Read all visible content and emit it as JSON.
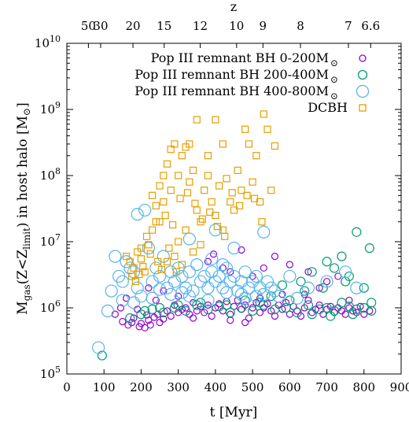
{
  "chart_data": {
    "type": "scatter",
    "top_axis_label": "z",
    "top_ticks": [
      50,
      30,
      20,
      15,
      12,
      10,
      9,
      8,
      7,
      6.6
    ],
    "top_tick_times": [
      58,
      91,
      178,
      262,
      359,
      457,
      528,
      629,
      758,
      818
    ],
    "xlabel": "t [Myr]",
    "ylabel_parts": {
      "prefix": "M",
      "sub1": "gas",
      "middle": "(Z<Z",
      "sub2": "limit",
      "suffix": ") in host halo [M",
      "end": "]"
    },
    "xlim": [
      0,
      900
    ],
    "xticks": [
      0,
      100,
      200,
      300,
      400,
      500,
      600,
      700,
      800,
      900
    ],
    "ylim_log10": [
      5,
      10
    ],
    "yticks_log10": [
      5,
      6,
      7,
      8,
      9,
      10
    ],
    "log_y": true,
    "legend_position": "top-right",
    "series": [
      {
        "name": "Pop III remnant BH 0-200M",
        "color": "#9400d3",
        "marker": "circle-small",
        "points": [
          [
            150,
            0.62
          ],
          [
            165,
            0.55
          ],
          [
            175,
            0.6
          ],
          [
            180,
            0.7
          ],
          [
            195,
            0.52
          ],
          [
            200,
            0.58
          ],
          [
            210,
            0.5
          ],
          [
            215,
            0.78
          ],
          [
            220,
            0.65
          ],
          [
            225,
            0.55
          ],
          [
            235,
            0.72
          ],
          [
            245,
            0.8
          ],
          [
            250,
            0.6
          ],
          [
            260,
            0.68
          ],
          [
            270,
            0.9
          ],
          [
            280,
            0.75
          ],
          [
            290,
            1.1
          ],
          [
            300,
            0.85
          ],
          [
            310,
            0.95
          ],
          [
            320,
            1.0
          ],
          [
            330,
            0.8
          ],
          [
            340,
            1.2
          ],
          [
            350,
            0.9
          ],
          [
            360,
            1.05
          ],
          [
            370,
            0.85
          ],
          [
            380,
            1.1
          ],
          [
            390,
            0.75
          ],
          [
            400,
            1.0
          ],
          [
            410,
            1.15
          ],
          [
            420,
            0.9
          ],
          [
            430,
            1.25
          ],
          [
            440,
            0.8
          ],
          [
            450,
            1.05
          ],
          [
            460,
            1.3
          ],
          [
            470,
            0.95
          ],
          [
            480,
            1.1
          ],
          [
            490,
            0.7
          ],
          [
            500,
            1.0
          ],
          [
            510,
            1.2
          ],
          [
            520,
            0.85
          ],
          [
            530,
            1.0
          ],
          [
            540,
            1.15
          ],
          [
            550,
            0.9
          ],
          [
            560,
            0.75
          ],
          [
            570,
            1.1
          ],
          [
            580,
            0.95
          ],
          [
            590,
            1.2
          ],
          [
            600,
            0.8
          ],
          [
            610,
            1.05
          ],
          [
            620,
            0.9
          ],
          [
            630,
            0.75
          ],
          [
            640,
            1.0
          ],
          [
            650,
            1.3
          ],
          [
            660,
            0.85
          ],
          [
            670,
            0.95
          ],
          [
            680,
            1.1
          ],
          [
            690,
            0.8
          ],
          [
            700,
            0.95
          ],
          [
            710,
            1.05
          ],
          [
            720,
            0.85
          ],
          [
            730,
            1.0
          ],
          [
            740,
            0.9
          ],
          [
            750,
            0.8
          ],
          [
            760,
            1.0
          ],
          [
            770,
            0.9
          ],
          [
            780,
            0.85
          ],
          [
            800,
            0.8
          ],
          [
            815,
            0.9
          ],
          [
            380,
            5.0
          ],
          [
            395,
            6.5
          ],
          [
            420,
            4.0
          ],
          [
            440,
            3.5
          ],
          [
            470,
            7.5
          ],
          [
            500,
            3.0
          ],
          [
            530,
            4.0
          ],
          [
            560,
            6.0
          ],
          [
            600,
            4.5
          ],
          [
            650,
            3.5
          ],
          [
            700,
            2.5
          ],
          [
            730,
            3.0
          ],
          [
            220,
            2.0
          ],
          [
            260,
            1.8
          ],
          [
            160,
            1.4
          ],
          [
            190,
            0.95
          ],
          [
            240,
            1.3
          ],
          [
            300,
            1.5
          ],
          [
            340,
            0.7
          ],
          [
            440,
            0.65
          ],
          [
            480,
            0.6
          ],
          [
            520,
            1.4
          ],
          [
            580,
            1.6
          ],
          [
            640,
            1.6
          ],
          [
            680,
            2.0
          ],
          [
            760,
            1.3
          ],
          [
            790,
            1.05
          ],
          [
            130,
            0.8
          ],
          [
            145,
            1.0
          ]
        ]
      },
      {
        "name": "Pop III remnant BH 200-400M",
        "color": "#009e73",
        "marker": "circle-medium",
        "points": [
          [
            95,
            0.19
          ],
          [
            170,
            0.7
          ],
          [
            200,
            0.8
          ],
          [
            230,
            0.95
          ],
          [
            260,
            0.85
          ],
          [
            290,
            1.0
          ],
          [
            320,
            0.9
          ],
          [
            350,
            1.1
          ],
          [
            380,
            0.95
          ],
          [
            410,
            1.05
          ],
          [
            440,
            0.85
          ],
          [
            470,
            1.0
          ],
          [
            500,
            0.9
          ],
          [
            530,
            1.1
          ],
          [
            560,
            0.95
          ],
          [
            590,
            1.0
          ],
          [
            620,
            0.85
          ],
          [
            650,
            1.1
          ],
          [
            680,
            0.95
          ],
          [
            700,
            1.0
          ],
          [
            720,
            0.9
          ],
          [
            740,
            1.2
          ],
          [
            760,
            1.05
          ],
          [
            780,
            0.95
          ],
          [
            800,
            1.0
          ],
          [
            820,
            0.9
          ],
          [
            780,
            14.0
          ],
          [
            815,
            8.0
          ],
          [
            700,
            5.0
          ],
          [
            740,
            6.0
          ],
          [
            760,
            3.0
          ],
          [
            630,
            2.5
          ],
          [
            660,
            3.5
          ],
          [
            690,
            2.0
          ],
          [
            720,
            4.0
          ],
          [
            750,
            2.5
          ],
          [
            800,
            2.0
          ],
          [
            600,
            1.3
          ],
          [
            640,
            1.8
          ],
          [
            580,
            2.2
          ],
          [
            550,
            1.5
          ],
          [
            520,
            1.2
          ],
          [
            480,
            1.3
          ],
          [
            430,
            1.1
          ],
          [
            360,
            1.2
          ],
          [
            300,
            1.1
          ],
          [
            250,
            1.0
          ],
          [
            210,
            0.9
          ],
          [
            660,
            0.8
          ],
          [
            710,
            0.75
          ],
          [
            770,
            0.8
          ],
          [
            820,
            1.2
          ]
        ]
      },
      {
        "name": "Pop III remnant BH 400-800M",
        "color": "#56b4e9",
        "marker": "circle-large",
        "points": [
          [
            85,
            0.25
          ],
          [
            110,
            0.9
          ],
          [
            120,
            1.8
          ],
          [
            130,
            6.0
          ],
          [
            140,
            3.0
          ],
          [
            150,
            2.5
          ],
          [
            160,
            5.0
          ],
          [
            170,
            4.0
          ],
          [
            180,
            3.5
          ],
          [
            190,
            2.0
          ],
          [
            200,
            1.5
          ],
          [
            210,
            30.0
          ],
          [
            220,
            8.0
          ],
          [
            230,
            2.5
          ],
          [
            240,
            4.0
          ],
          [
            250,
            3.0
          ],
          [
            260,
            6.0
          ],
          [
            270,
            2.0
          ],
          [
            280,
            3.5
          ],
          [
            290,
            2.5
          ],
          [
            300,
            4.0
          ],
          [
            310,
            3.0
          ],
          [
            320,
            2.0
          ],
          [
            330,
            3.5
          ],
          [
            340,
            1.8
          ],
          [
            350,
            4.5
          ],
          [
            360,
            2.5
          ],
          [
            370,
            3.0
          ],
          [
            380,
            2.0
          ],
          [
            390,
            3.5
          ],
          [
            400,
            2.5
          ],
          [
            410,
            3.0
          ],
          [
            420,
            2.0
          ],
          [
            430,
            4.0
          ],
          [
            440,
            2.5
          ],
          [
            450,
            3.0
          ],
          [
            460,
            1.8
          ],
          [
            470,
            2.5
          ],
          [
            480,
            3.5
          ],
          [
            490,
            2.0
          ],
          [
            500,
            2.5
          ],
          [
            510,
            3.0
          ],
          [
            520,
            2.0
          ],
          [
            530,
            14.0
          ],
          [
            540,
            2.5
          ],
          [
            550,
            2.0
          ],
          [
            560,
            1.8
          ],
          [
            600,
            3.0
          ],
          [
            650,
            2.0
          ],
          [
            700,
            2.5
          ],
          [
            750,
            3.5
          ],
          [
            780,
            2.0
          ],
          [
            190,
            26.0
          ],
          [
            330,
            11.0
          ],
          [
            400,
            15.0
          ],
          [
            180,
            1.2
          ],
          [
            230,
            1.4
          ],
          [
            280,
            1.6
          ],
          [
            330,
            1.5
          ],
          [
            380,
            1.3
          ],
          [
            430,
            1.7
          ],
          [
            480,
            1.4
          ],
          [
            530,
            1.6
          ],
          [
            150,
            1.3
          ],
          [
            450,
            8.0
          ],
          [
            420,
            4.5
          ],
          [
            390,
            5.5
          ],
          [
            250,
            1.9
          ],
          [
            310,
            1.7
          ],
          [
            470,
            1.6
          ],
          [
            510,
            1.5
          ],
          [
            570,
            1.5
          ],
          [
            620,
            1.4
          ]
        ]
      },
      {
        "name": "DCBH",
        "color": "#e69f00",
        "marker": "square",
        "points": [
          [
            160,
            6.0
          ],
          [
            170,
            5.0
          ],
          [
            180,
            4.0
          ],
          [
            190,
            7.0
          ],
          [
            200,
            5.5
          ],
          [
            210,
            3.5
          ],
          [
            220,
            9.0
          ],
          [
            230,
            50.0
          ],
          [
            240,
            20.0
          ],
          [
            250,
            70.0
          ],
          [
            260,
            40.0
          ],
          [
            270,
            150.0
          ],
          [
            280,
            60.0
          ],
          [
            290,
            300.0
          ],
          [
            300,
            100.0
          ],
          [
            310,
            200.0
          ],
          [
            320,
            270.0
          ],
          [
            330,
            80.0
          ],
          [
            340,
            120.0
          ],
          [
            350,
            30.0
          ],
          [
            360,
            20.0
          ],
          [
            370,
            60.0
          ],
          [
            380,
            100.0
          ],
          [
            390,
            40.0
          ],
          [
            400,
            25.0
          ],
          [
            410,
            70.0
          ],
          [
            420,
            15.0
          ],
          [
            430,
            90.0
          ],
          [
            440,
            40.0
          ],
          [
            450,
            30.0
          ],
          [
            460,
            120.0
          ],
          [
            470,
            60.0
          ],
          [
            480,
            500.0
          ],
          [
            490,
            300.0
          ],
          [
            500,
            80.0
          ],
          [
            510,
            200.0
          ],
          [
            520,
            40.0
          ],
          [
            530,
            850.0
          ],
          [
            540,
            500.0
          ],
          [
            550,
            60.0
          ],
          [
            560,
            280.0
          ],
          [
            350,
            700.0
          ],
          [
            400,
            700.0
          ],
          [
            420,
            300.0
          ],
          [
            380,
            200.0
          ],
          [
            330,
            300.0
          ],
          [
            260,
            100.0
          ],
          [
            280,
            250.0
          ],
          [
            230,
            15.0
          ],
          [
            250,
            20.0
          ],
          [
            300,
            10.0
          ],
          [
            320,
            15.0
          ],
          [
            340,
            7.0
          ],
          [
            360,
            9.0
          ],
          [
            270,
            5.0
          ],
          [
            290,
            6.0
          ],
          [
            310,
            4.5
          ],
          [
            200,
            8.0
          ],
          [
            215,
            12.0
          ],
          [
            240,
            35.0
          ],
          [
            265,
            25.0
          ],
          [
            285,
            18.0
          ],
          [
            305,
            45.0
          ],
          [
            325,
            55.0
          ],
          [
            345,
            38.0
          ],
          [
            365,
            22.0
          ],
          [
            385,
            28.0
          ],
          [
            405,
            17.0
          ],
          [
            425,
            12.0
          ],
          [
            445,
            55.0
          ],
          [
            465,
            35.0
          ],
          [
            485,
            50.0
          ],
          [
            505,
            45.0
          ],
          [
            525,
            20.0
          ],
          [
            175,
            3.0
          ],
          [
            185,
            2.5
          ],
          [
            195,
            3.2
          ],
          [
            205,
            4.2
          ],
          [
            225,
            6.5
          ],
          [
            245,
            5.0
          ],
          [
            255,
            3.8
          ],
          [
            275,
            8.0
          ],
          [
            295,
            3.5
          ]
        ]
      }
    ]
  }
}
